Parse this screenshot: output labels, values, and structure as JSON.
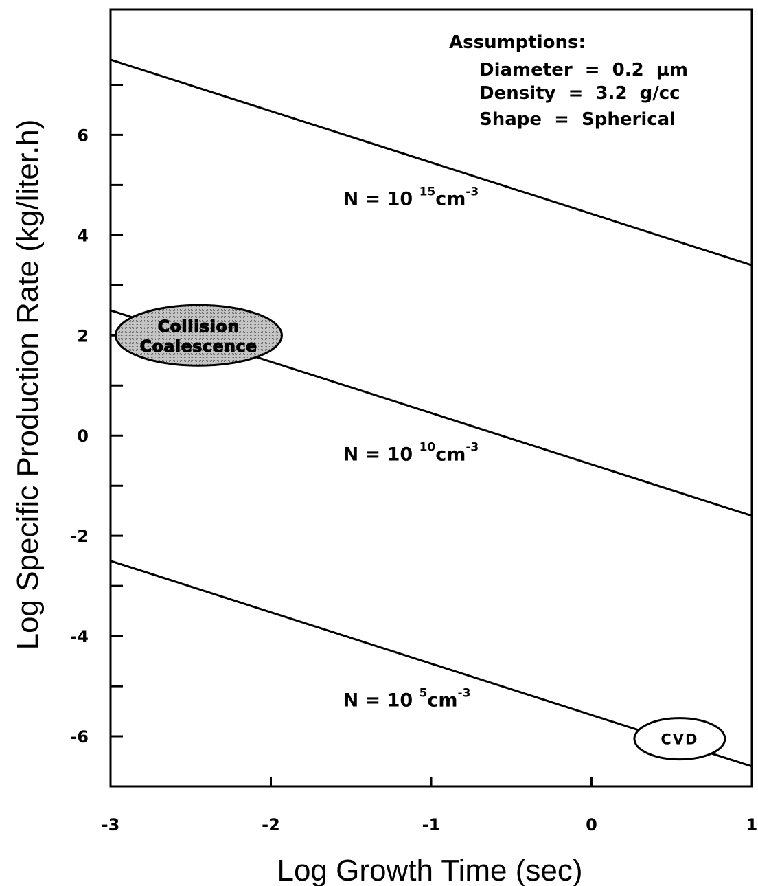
{
  "chart_data": {
    "type": "line",
    "xlabel": "Log Growth Time (sec)",
    "ylabel": "Log Specific Production Rate (kg/liter.h)",
    "xlim": [
      -3,
      1
    ],
    "ylim": [
      -7,
      8.5
    ],
    "x_ticks": [
      -3,
      -2,
      -1,
      0,
      1
    ],
    "x_tick_labels": [
      "-3",
      "-2",
      "-1",
      "0",
      "1"
    ],
    "y_ticks": [
      -6,
      -4,
      -2,
      0,
      2,
      4,
      6
    ],
    "y_tick_labels": [
      "-6",
      "-4",
      "-2",
      "0",
      "2",
      "4",
      "6"
    ],
    "y_minor_ticks": [
      -5,
      -3,
      -1,
      1,
      3,
      5,
      7
    ],
    "grid": false,
    "series": [
      {
        "name": "N = 10^15 cm^-3",
        "x": [
          -3,
          1
        ],
        "y": [
          7.5,
          3.4
        ]
      },
      {
        "name": "N = 10^10 cm^-3",
        "x": [
          -3,
          1
        ],
        "y": [
          2.5,
          -1.6
        ]
      },
      {
        "name": "N = 10^5 cm^-3",
        "x": [
          -3,
          1
        ],
        "y": [
          -2.5,
          -6.6
        ]
      }
    ],
    "series_labels": [
      {
        "prefix": "N = 10",
        "exp": "15",
        "unit": "cm",
        "unit_exp": "-3",
        "x": -1.55,
        "y": 4.6
      },
      {
        "prefix": "N = 10",
        "exp": "10",
        "unit": "cm",
        "unit_exp": "-3",
        "x": -1.55,
        "y": -0.5
      },
      {
        "prefix": "N = 10",
        "exp": "5",
        "unit": "cm",
        "unit_exp": "-3",
        "x": -1.55,
        "y": -5.4
      }
    ],
    "regions": [
      {
        "lines": [
          "Collision",
          "Coalescence"
        ],
        "x": -2.45,
        "y": 2.0,
        "shaded": true
      },
      {
        "lines": [
          "CVD"
        ],
        "x": 0.55,
        "y": -6.05,
        "shaded": false
      }
    ],
    "assumptions": {
      "title": "Assumptions:",
      "items": [
        "Diameter  =  0.2  µm",
        "Density  =  3.2  g/cc",
        "Shape  =  Spherical"
      ]
    }
  }
}
